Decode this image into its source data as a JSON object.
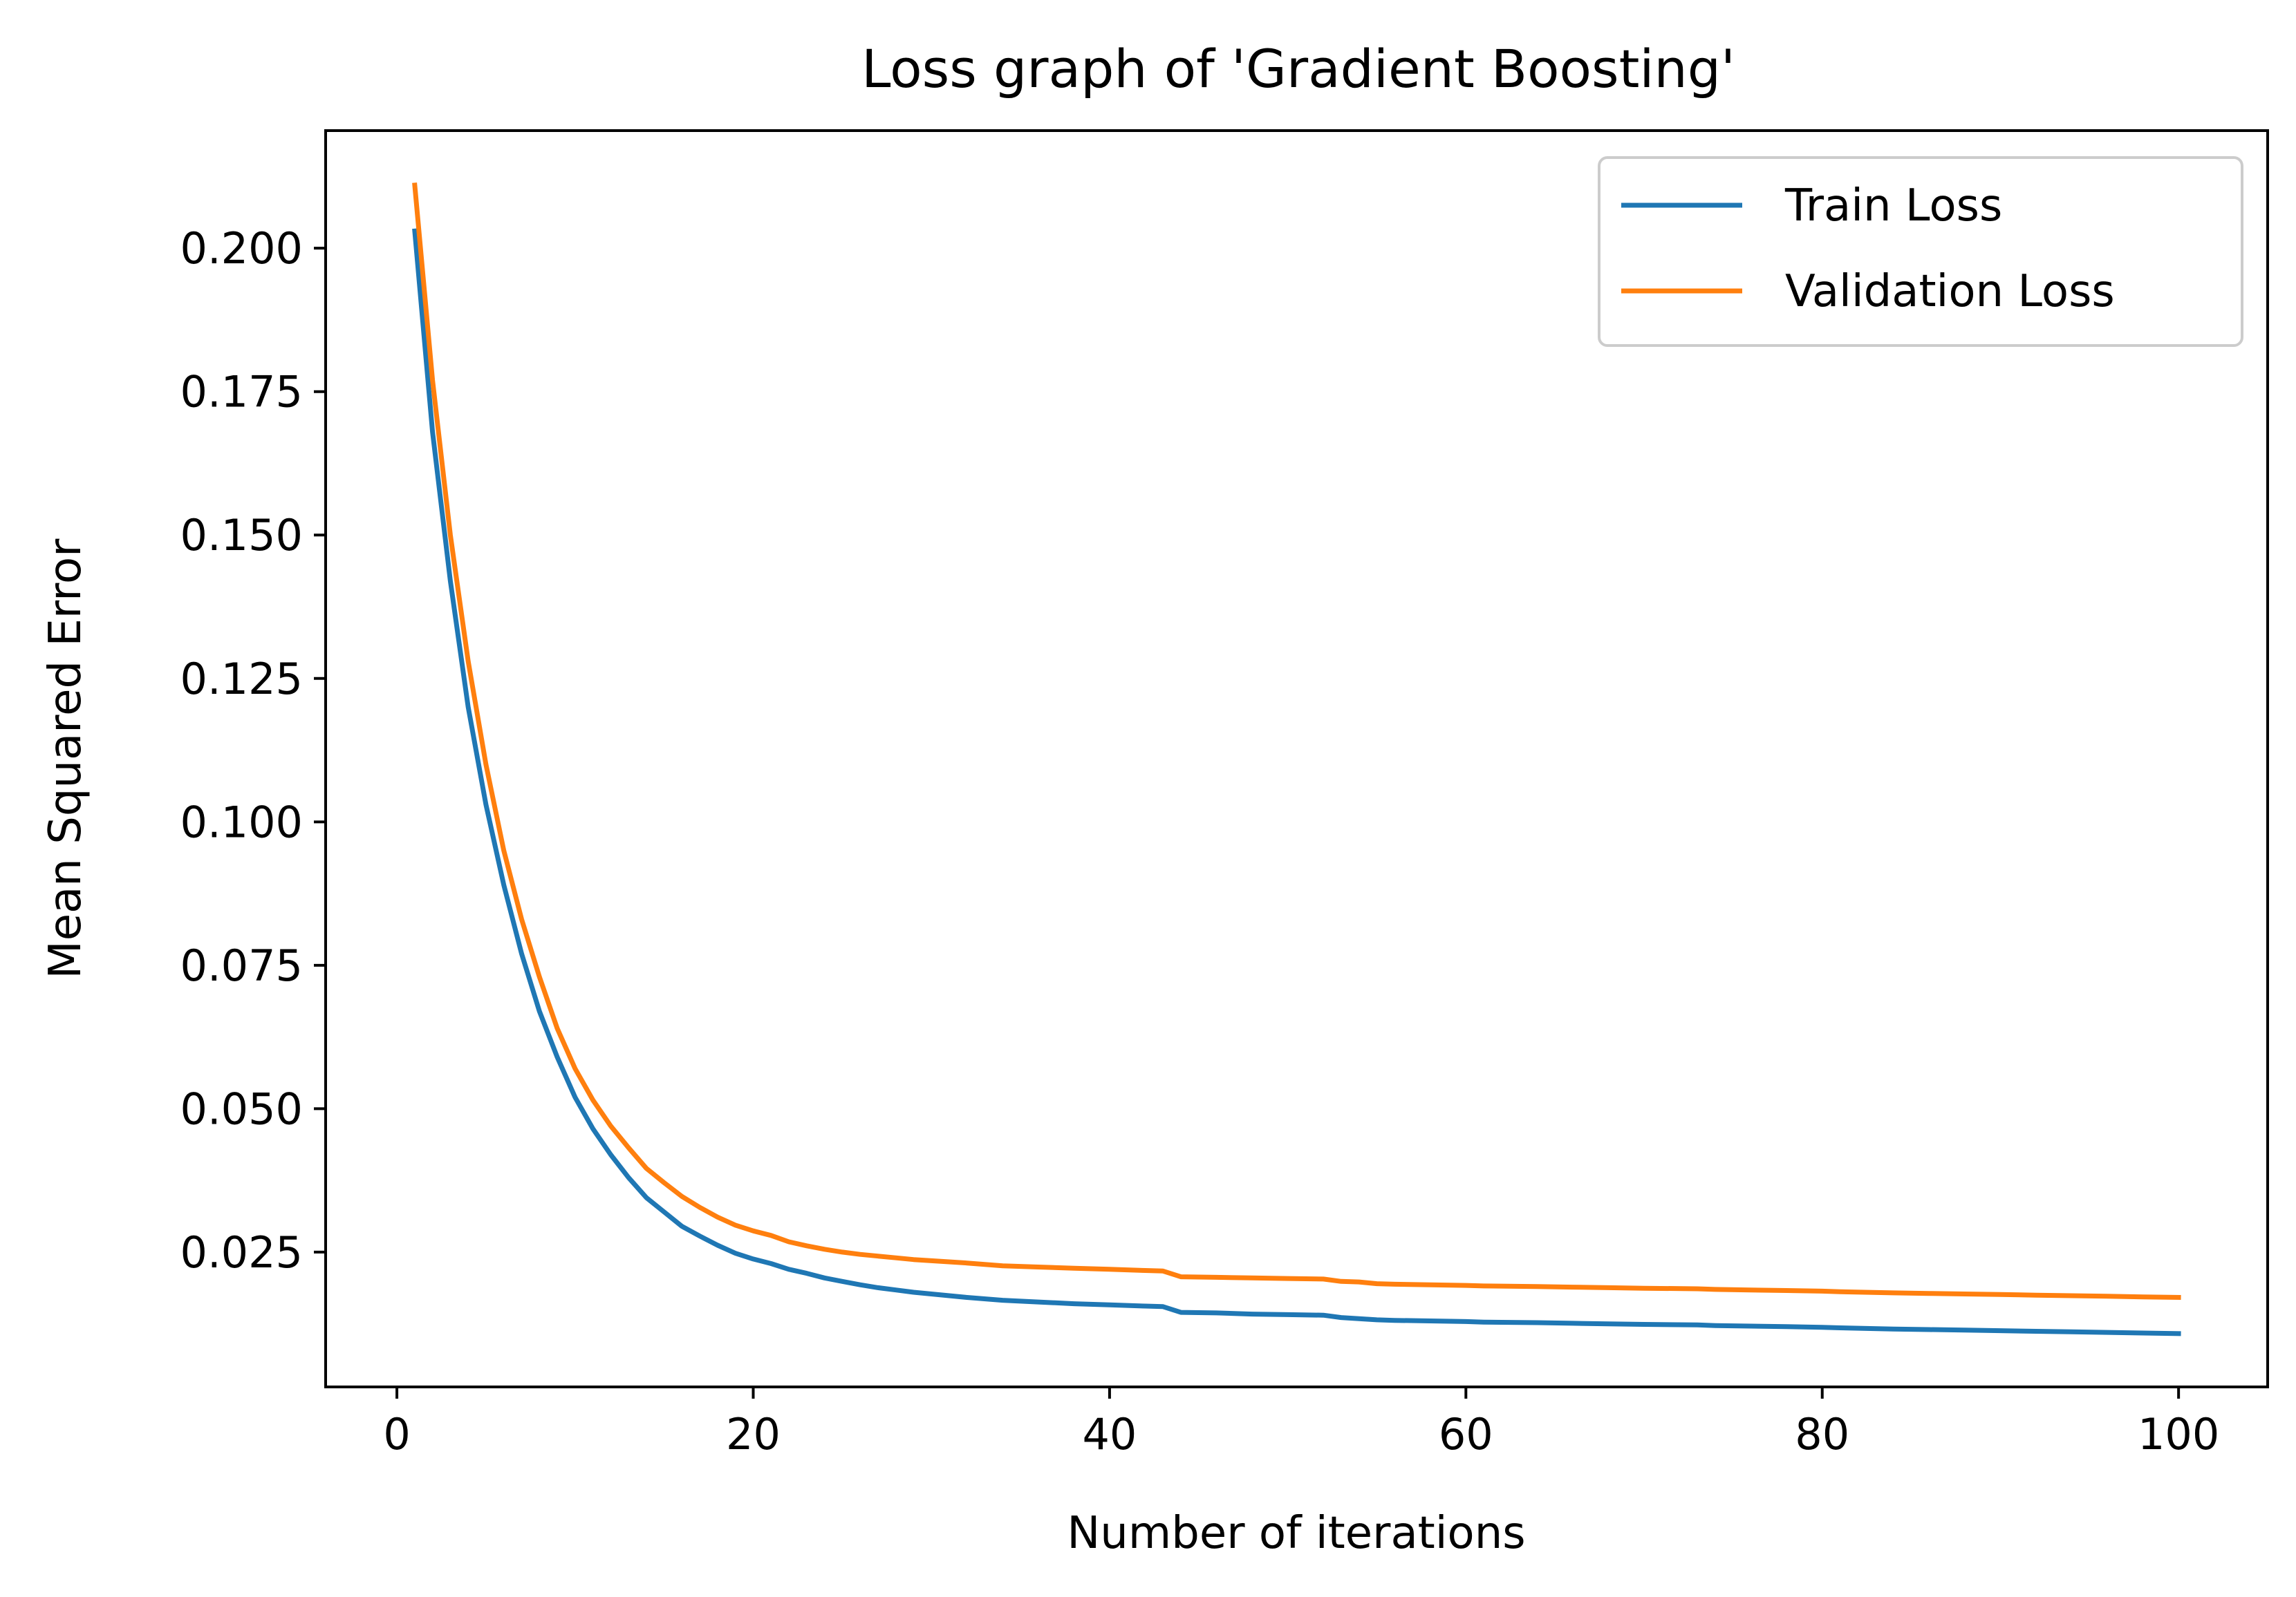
{
  "chart_data": {
    "type": "line",
    "title": "Loss graph of 'Gradient Boosting'",
    "xlabel": "Number of iterations",
    "ylabel": "Mean Squared Error",
    "xlim": [
      -4,
      105
    ],
    "ylim": [
      0.0015,
      0.2205
    ],
    "xticks": [
      0,
      20,
      40,
      60,
      80,
      100
    ],
    "yticks": [
      0.025,
      0.05,
      0.075,
      0.1,
      0.125,
      0.15,
      0.175,
      0.2
    ],
    "xtick_labels": [
      "0",
      "20",
      "40",
      "60",
      "80",
      "100"
    ],
    "ytick_labels": [
      "0.025",
      "0.050",
      "0.075",
      "0.100",
      "0.125",
      "0.150",
      "0.175",
      "0.200"
    ],
    "grid": false,
    "legend_position": "top-right",
    "series": [
      {
        "name": "Train Loss",
        "color": "#1f77b4",
        "x": [
          1,
          2,
          3,
          4,
          5,
          6,
          7,
          8,
          9,
          10,
          11,
          12,
          13,
          14,
          15,
          16,
          17,
          18,
          19,
          20,
          21,
          22,
          23,
          24,
          25,
          26,
          27,
          28,
          29,
          30,
          32,
          34,
          36,
          38,
          40,
          42,
          43,
          44,
          46,
          48,
          50,
          52,
          53,
          54,
          55,
          56,
          58,
          60,
          61,
          64,
          66,
          68,
          70,
          73,
          74,
          76,
          78,
          80,
          81,
          84,
          86,
          88,
          90,
          92,
          94,
          96,
          98,
          100
        ],
        "y": [
          0.203,
          0.168,
          0.142,
          0.12,
          0.103,
          0.089,
          0.077,
          0.067,
          0.059,
          0.052,
          0.0465,
          0.042,
          0.038,
          0.0345,
          0.032,
          0.0295,
          0.0278,
          0.0262,
          0.0248,
          0.0238,
          0.023,
          0.022,
          0.0213,
          0.0205,
          0.0199,
          0.0193,
          0.0188,
          0.0184,
          0.018,
          0.0177,
          0.0171,
          0.0166,
          0.0163,
          0.016,
          0.0158,
          0.0156,
          0.0155,
          0.0145,
          0.0144,
          0.0142,
          0.0141,
          0.014,
          0.0136,
          0.0134,
          0.0132,
          0.0131,
          0.013,
          0.0129,
          0.0128,
          0.0127,
          0.0126,
          0.0125,
          0.0124,
          0.0123,
          0.0122,
          0.0121,
          0.012,
          0.0119,
          0.0118,
          0.0116,
          0.0115,
          0.0114,
          0.0113,
          0.0112,
          0.0111,
          0.011,
          0.0109,
          0.0108
        ]
      },
      {
        "name": "Validation Loss",
        "color": "#ff7f0e",
        "x": [
          1,
          2,
          3,
          4,
          5,
          6,
          7,
          8,
          9,
          10,
          11,
          12,
          13,
          14,
          15,
          16,
          17,
          18,
          19,
          20,
          21,
          22,
          23,
          24,
          25,
          26,
          27,
          28,
          29,
          30,
          32,
          34,
          36,
          38,
          40,
          42,
          43,
          44,
          46,
          48,
          50,
          52,
          53,
          54,
          55,
          56,
          58,
          60,
          61,
          64,
          66,
          68,
          70,
          73,
          74,
          76,
          78,
          80,
          81,
          84,
          86,
          88,
          90,
          92,
          94,
          96,
          98,
          100
        ],
        "y": [
          0.211,
          0.177,
          0.15,
          0.128,
          0.11,
          0.095,
          0.083,
          0.073,
          0.064,
          0.057,
          0.0515,
          0.047,
          0.0432,
          0.0396,
          0.0371,
          0.0347,
          0.0328,
          0.0311,
          0.0297,
          0.0287,
          0.0279,
          0.0268,
          0.0261,
          0.0255,
          0.025,
          0.0246,
          0.0243,
          0.024,
          0.0237,
          0.0235,
          0.0231,
          0.0226,
          0.0224,
          0.0222,
          0.022,
          0.0218,
          0.0217,
          0.0207,
          0.0206,
          0.0205,
          0.0204,
          0.0203,
          0.0199,
          0.0198,
          0.0195,
          0.0194,
          0.0193,
          0.0192,
          0.0191,
          0.019,
          0.0189,
          0.0188,
          0.0187,
          0.0186,
          0.0185,
          0.0184,
          0.0183,
          0.0182,
          0.0181,
          0.0179,
          0.0178,
          0.0177,
          0.0176,
          0.0175,
          0.0174,
          0.0173,
          0.0172,
          0.0171
        ]
      }
    ]
  }
}
